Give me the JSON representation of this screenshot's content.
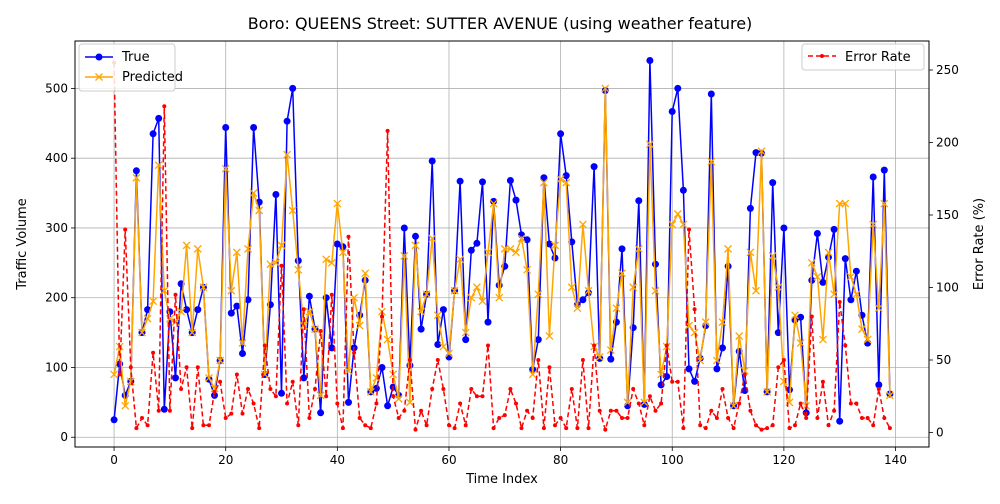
{
  "chart_data": {
    "type": "line",
    "title": "Boro: QUEENS Street: SUTTER AVENUE (using weather feature)",
    "xlabel": "Time Index",
    "ylabel": "Traffic Volume",
    "y2label": "Error Rate (%)",
    "xlim": [
      -7,
      146
    ],
    "ylim": [
      -14,
      568
    ],
    "y2lim": [
      -10,
      270
    ],
    "xticks": [
      0,
      20,
      40,
      60,
      80,
      100,
      120,
      140
    ],
    "yticks": [
      0,
      100,
      200,
      300,
      400,
      500
    ],
    "y2ticks": [
      0,
      50,
      100,
      150,
      200,
      250
    ],
    "grid": true,
    "legend_left_position": "upper-left",
    "legend_right_position": "upper-right",
    "x": [
      0,
      1,
      2,
      3,
      4,
      5,
      6,
      7,
      8,
      9,
      10,
      11,
      12,
      13,
      14,
      15,
      16,
      17,
      18,
      19,
      20,
      21,
      22,
      23,
      24,
      25,
      26,
      27,
      28,
      29,
      30,
      31,
      32,
      33,
      34,
      35,
      36,
      37,
      38,
      39,
      40,
      41,
      42,
      43,
      44,
      45,
      46,
      47,
      48,
      49,
      50,
      51,
      52,
      53,
      54,
      55,
      56,
      57,
      58,
      59,
      60,
      61,
      62,
      63,
      64,
      65,
      66,
      67,
      68,
      69,
      70,
      71,
      72,
      73,
      74,
      75,
      76,
      77,
      78,
      79,
      80,
      81,
      82,
      83,
      84,
      85,
      86,
      87,
      88,
      89,
      90,
      91,
      92,
      93,
      94,
      95,
      96,
      97,
      98,
      99,
      100,
      101,
      102,
      103,
      104,
      105,
      106,
      107,
      108,
      109,
      110,
      111,
      112,
      113,
      114,
      115,
      116,
      117,
      118,
      119,
      120,
      121,
      122,
      123,
      124,
      125,
      126,
      127,
      128,
      129,
      130,
      131,
      132,
      133,
      134,
      135,
      136,
      137,
      138,
      139
    ],
    "series": [
      {
        "name": "True",
        "axis": "left",
        "color": "#0000ff",
        "marker": "circle",
        "values": [
          25,
          105,
          60,
          80,
          382,
          150,
          183,
          435,
          457,
          40,
          180,
          85,
          220,
          183,
          150,
          183,
          215,
          83,
          60,
          110,
          444,
          178,
          188,
          120,
          197,
          444,
          337,
          90,
          190,
          348,
          63,
          453,
          500,
          253,
          85,
          202,
          155,
          35,
          200,
          128,
          277,
          273,
          50,
          128,
          175,
          225,
          65,
          70,
          100,
          45,
          72,
          60,
          300,
          103,
          288,
          155,
          205,
          396,
          133,
          183,
          115,
          210,
          367,
          140,
          268,
          278,
          366,
          165,
          338,
          218,
          245,
          368,
          340,
          290,
          283,
          97,
          140,
          372,
          277,
          257,
          435,
          375,
          280,
          190,
          197,
          207,
          388,
          113,
          497,
          112,
          165,
          270,
          45,
          157,
          339,
          47,
          540,
          248,
          75,
          87,
          467,
          500,
          354,
          98,
          80,
          113,
          160,
          492,
          98,
          128,
          245,
          45,
          123,
          67,
          328,
          408,
          407,
          65,
          365,
          150,
          300,
          68,
          168,
          172,
          35,
          225,
          292,
          222,
          258,
          298,
          23,
          256,
          197,
          238,
          175,
          135,
          373,
          75,
          383,
          62
        ]
      },
      {
        "name": "Predicted",
        "axis": "left",
        "color": "#ffa500",
        "marker": "x",
        "values": [
          90,
          130,
          45,
          80,
          372,
          150,
          170,
          195,
          390,
          210,
          170,
          165,
          180,
          275,
          150,
          270,
          215,
          85,
          70,
          110,
          385,
          210,
          265,
          135,
          270,
          350,
          325,
          90,
          248,
          250,
          275,
          405,
          325,
          240,
          160,
          180,
          155,
          60,
          255,
          250,
          335,
          265,
          95,
          200,
          160,
          235,
          65,
          85,
          180,
          140,
          90,
          55,
          260,
          50,
          275,
          180,
          205,
          285,
          175,
          130,
          120,
          210,
          255,
          150,
          200,
          215,
          195,
          265,
          335,
          200,
          270,
          270,
          265,
          285,
          240,
          90,
          205,
          365,
          145,
          275,
          370,
          365,
          215,
          185,
          305,
          210,
          130,
          115,
          500,
          125,
          185,
          235,
          50,
          215,
          270,
          50,
          420,
          210,
          90,
          130,
          305,
          320,
          305,
          160,
          150,
          110,
          165,
          395,
          110,
          165,
          270,
          45,
          145,
          95,
          265,
          210,
          410,
          65,
          260,
          215,
          80,
          50,
          175,
          135,
          45,
          250,
          230,
          140,
          265,
          205,
          335,
          335,
          230,
          205,
          155,
          140,
          305,
          185,
          335,
          60
        ]
      },
      {
        "name": "Error Rate",
        "axis": "right",
        "color": "#ff0000",
        "marker": "dot",
        "values": [
          255,
          40,
          140,
          45,
          3,
          10,
          5,
          55,
          15,
          225,
          15,
          95,
          30,
          45,
          3,
          45,
          5,
          5,
          28,
          35,
          10,
          13,
          40,
          13,
          30,
          20,
          3,
          60,
          30,
          25,
          115,
          20,
          35,
          5,
          85,
          10,
          30,
          70,
          25,
          95,
          20,
          3,
          135,
          55,
          10,
          5,
          3,
          20,
          80,
          208,
          25,
          10,
          15,
          50,
          2,
          15,
          5,
          30,
          50,
          30,
          5,
          3,
          20,
          5,
          30,
          25,
          25,
          60,
          3,
          10,
          12,
          30,
          20,
          3,
          15,
          10,
          50,
          3,
          45,
          5,
          10,
          3,
          30,
          3,
          50,
          3,
          60,
          15,
          2,
          15,
          15,
          10,
          10,
          30,
          20,
          5,
          25,
          15,
          20,
          60,
          35,
          35,
          3,
          140,
          85,
          5,
          3,
          15,
          10,
          30,
          10,
          3,
          20,
          40,
          15,
          5,
          2,
          3,
          5,
          45,
          50,
          3,
          5,
          20,
          10,
          80,
          10,
          35,
          5,
          15,
          90,
          60,
          20,
          20,
          10,
          10,
          5,
          30,
          10,
          3
        ]
      }
    ]
  }
}
